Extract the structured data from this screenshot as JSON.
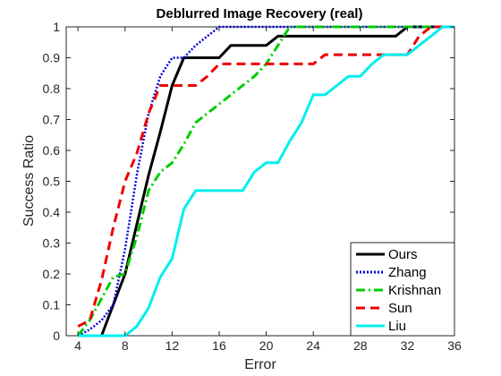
{
  "chart_data": {
    "type": "line",
    "title": "Deblurred Image Recovery (real)",
    "xlabel": "Error",
    "ylabel": "Success Ratio",
    "xlim": [
      3,
      36
    ],
    "ylim": [
      0,
      1
    ],
    "xticks": [
      4,
      8,
      12,
      16,
      20,
      24,
      28,
      32,
      36
    ],
    "yticks": [
      0,
      0.1,
      0.2,
      0.3,
      0.4,
      0.5,
      0.6,
      0.7,
      0.8,
      0.9,
      1
    ],
    "xtick_labels": [
      "4",
      "8",
      "12",
      "16",
      "20",
      "24",
      "28",
      "32",
      "36"
    ],
    "ytick_labels": [
      "0",
      "0.1",
      "0.2",
      "0.3",
      "0.4",
      "0.5",
      "0.6",
      "0.7",
      "0.8",
      "0.9",
      "1"
    ],
    "grid": false,
    "legend_position": "bottom-right",
    "series": [
      {
        "name": "Ours",
        "color": "#000000",
        "dash": "solid",
        "x": [
          4,
          5,
          6,
          7,
          8,
          9,
          10,
          11,
          12,
          13,
          14,
          15,
          16,
          17,
          18,
          19,
          20,
          21,
          22,
          23,
          24,
          25,
          26,
          27,
          28,
          29,
          30,
          31,
          32,
          33,
          34,
          35,
          36
        ],
        "y": [
          0,
          0,
          0,
          0.1,
          0.2,
          0.36,
          0.52,
          0.66,
          0.81,
          0.9,
          0.9,
          0.9,
          0.9,
          0.94,
          0.94,
          0.94,
          0.94,
          0.97,
          0.97,
          0.97,
          0.97,
          0.97,
          0.97,
          0.97,
          0.97,
          0.97,
          0.97,
          0.97,
          1,
          1,
          1,
          1,
          1
        ]
      },
      {
        "name": "Zhang",
        "color": "#0000dd",
        "dash": "dotted",
        "x": [
          4,
          5,
          6,
          7,
          8,
          9,
          10,
          11,
          12,
          13,
          14,
          15,
          16,
          17,
          18,
          19,
          20,
          21,
          22,
          23,
          24,
          25,
          26,
          27,
          28,
          29,
          30,
          31,
          32,
          33,
          34,
          35,
          36
        ],
        "y": [
          0,
          0.02,
          0.05,
          0.1,
          0.28,
          0.52,
          0.72,
          0.84,
          0.9,
          0.9,
          0.94,
          0.97,
          1,
          1,
          1,
          1,
          1,
          1,
          1,
          1,
          1,
          1,
          1,
          1,
          1,
          1,
          1,
          1,
          1,
          1,
          1,
          1,
          1
        ]
      },
      {
        "name": "Krishnan",
        "color": "#00cc00",
        "dash": "dashdot",
        "x": [
          4,
          5,
          6,
          7,
          8,
          9,
          10,
          11,
          12,
          13,
          14,
          15,
          16,
          17,
          18,
          19,
          20,
          21,
          22,
          23,
          24,
          25,
          26,
          27,
          28,
          29,
          30,
          31,
          32,
          33,
          34,
          35,
          36
        ],
        "y": [
          0,
          0.05,
          0.12,
          0.19,
          0.2,
          0.32,
          0.47,
          0.53,
          0.56,
          0.62,
          0.69,
          0.72,
          0.75,
          0.78,
          0.81,
          0.84,
          0.88,
          0.94,
          1,
          1,
          1,
          1,
          1,
          1,
          1,
          1,
          1,
          1,
          1,
          1,
          1,
          1,
          1
        ]
      },
      {
        "name": "Sun",
        "color": "#ee0000",
        "dash": "dashed",
        "x": [
          4,
          5,
          6,
          7,
          8,
          9,
          10,
          11,
          12,
          13,
          14,
          15,
          16,
          17,
          18,
          19,
          20,
          21,
          22,
          23,
          24,
          25,
          26,
          27,
          28,
          29,
          30,
          31,
          32,
          33,
          34,
          35,
          36
        ],
        "y": [
          0.03,
          0.05,
          0.18,
          0.35,
          0.5,
          0.59,
          0.72,
          0.81,
          0.81,
          0.81,
          0.81,
          0.84,
          0.88,
          0.88,
          0.88,
          0.88,
          0.88,
          0.88,
          0.88,
          0.88,
          0.88,
          0.91,
          0.91,
          0.91,
          0.91,
          0.91,
          0.91,
          0.91,
          0.91,
          0.97,
          1,
          1,
          1
        ]
      },
      {
        "name": "Liu",
        "color": "#00eeee",
        "dash": "solid",
        "x": [
          4,
          5,
          6,
          7,
          8,
          9,
          10,
          11,
          12,
          13,
          14,
          15,
          16,
          17,
          18,
          19,
          20,
          21,
          22,
          23,
          24,
          25,
          26,
          27,
          28,
          29,
          30,
          31,
          32,
          33,
          34,
          35,
          36
        ],
        "y": [
          0,
          0,
          0,
          0,
          0,
          0.03,
          0.09,
          0.19,
          0.25,
          0.41,
          0.47,
          0.47,
          0.47,
          0.47,
          0.47,
          0.53,
          0.56,
          0.56,
          0.63,
          0.69,
          0.78,
          0.78,
          0.81,
          0.84,
          0.84,
          0.88,
          0.91,
          0.91,
          0.91,
          0.94,
          0.97,
          1,
          1
        ]
      }
    ]
  }
}
